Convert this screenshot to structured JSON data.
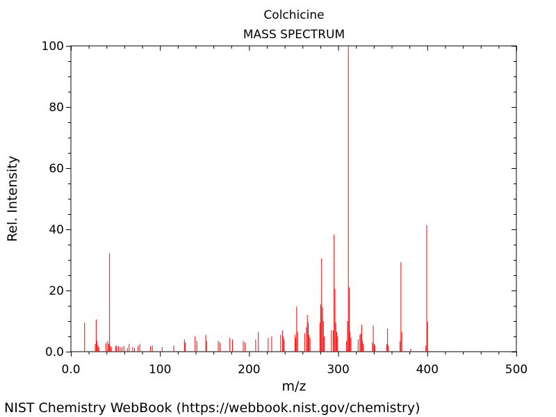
{
  "chart_data": {
    "type": "bar",
    "title": "Colchicine",
    "subtitle": "MASS SPECTRUM",
    "xlabel": "m/z",
    "ylabel": "Rel. Intensity",
    "xlim": [
      0,
      500
    ],
    "ylim": [
      0,
      100
    ],
    "x_ticks": [
      "0.0",
      "100",
      "200",
      "300",
      "400",
      "500"
    ],
    "y_ticks": [
      "0.0",
      "20",
      "40",
      "60",
      "80",
      "100"
    ],
    "grid": false,
    "bar_color": "#ff0000",
    "series": [
      {
        "mz": [
          15,
          27,
          28,
          29,
          30,
          31,
          39,
          41,
          42,
          43,
          44,
          45,
          50,
          51,
          53,
          55,
          57,
          59,
          63,
          65,
          69,
          71,
          75,
          77,
          89,
          91,
          102,
          115,
          127,
          128,
          139,
          141,
          151,
          152,
          165,
          167,
          178,
          181,
          193,
          195,
          207,
          210,
          221,
          225,
          235,
          237,
          238,
          239,
          251,
          252,
          253,
          254,
          262,
          264,
          265,
          266,
          267,
          268,
          279,
          280,
          281,
          282,
          283,
          284,
          292,
          294,
          295,
          296,
          297,
          298,
          299,
          309,
          310,
          311,
          312,
          313,
          314,
          322,
          324,
          325,
          326,
          327,
          328,
          338,
          339,
          340,
          341,
          354,
          355,
          356,
          369,
          370,
          371,
          381,
          398,
          399,
          400
        ],
        "intensity": [
          9.5,
          2.5,
          10.5,
          3.5,
          2.2,
          1.5,
          2.8,
          3.5,
          2.5,
          32.2,
          2.0,
          1.5,
          1.8,
          2.0,
          1.8,
          1.5,
          1.5,
          1.8,
          1.2,
          2.5,
          1.5,
          1.2,
          2.0,
          2.5,
          1.8,
          2.0,
          1.5,
          2.0,
          4.0,
          3.0,
          5.0,
          3.5,
          5.5,
          3.5,
          3.5,
          3.0,
          4.5,
          4.0,
          3.5,
          3.0,
          4.0,
          6.5,
          4.5,
          5.0,
          5.5,
          7.0,
          5.0,
          4.0,
          5.5,
          4.5,
          14.7,
          6.5,
          6.0,
          8.0,
          12.0,
          9.5,
          5.5,
          4.5,
          9.5,
          15.5,
          30.5,
          14.5,
          10.0,
          5.0,
          7.0,
          7.0,
          38.3,
          20.5,
          9.5,
          6.5,
          5.0,
          3.5,
          10.0,
          100.0,
          21.0,
          6.5,
          4.5,
          4.0,
          5.5,
          6.0,
          8.8,
          3.5,
          2.5,
          3.0,
          8.5,
          2.5,
          2.0,
          2.5,
          7.5,
          2.0,
          3.5,
          29.3,
          6.5,
          1.0,
          2.0,
          41.4,
          9.8
        ]
      }
    ]
  },
  "footer": {
    "source": "NIST Chemistry WebBook (https://webbook.nist.gov/chemistry)"
  }
}
